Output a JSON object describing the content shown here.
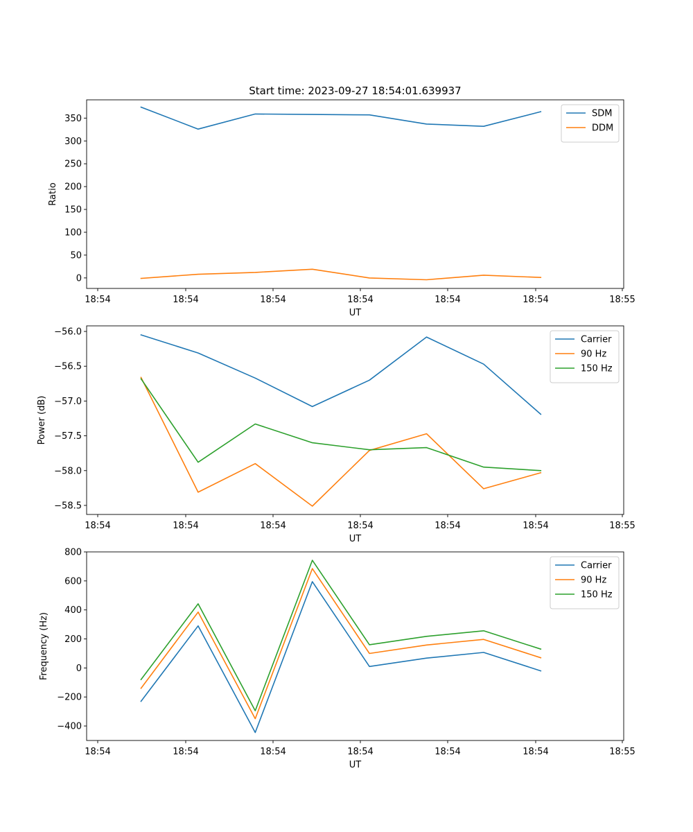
{
  "title": "Start time: 2023-09-27 18:54:01.639937",
  "chart_data": [
    {
      "type": "line",
      "xlabel": "UT",
      "ylabel": "Ratio",
      "xticks": [
        "18:54",
        "18:54",
        "18:54",
        "18:54",
        "18:54",
        "18:54",
        "18:55"
      ],
      "ylim": [
        -23,
        390
      ],
      "yticks": [
        0,
        50,
        100,
        150,
        200,
        250,
        300,
        350
      ],
      "legend": "top-right",
      "series": [
        {
          "name": "SDM",
          "color": "#1f77b4",
          "values": [
            374,
            326,
            359,
            358,
            357,
            337,
            332,
            364
          ]
        },
        {
          "name": "DDM",
          "color": "#ff7f0e",
          "values": [
            -1,
            8,
            12,
            19,
            0,
            -4,
            6,
            1
          ]
        }
      ]
    },
    {
      "type": "line",
      "xlabel": "UT",
      "ylabel": "Power (dB)",
      "xticks": [
        "18:54",
        "18:54",
        "18:54",
        "18:54",
        "18:54",
        "18:54",
        "18:55"
      ],
      "ylim": [
        -58.63,
        -55.92
      ],
      "yticks": [
        -56.0,
        -56.5,
        -57.0,
        -57.5,
        -58.0,
        -58.5
      ],
      "legend": "top-right",
      "series": [
        {
          "name": "Carrier",
          "color": "#1f77b4",
          "values": [
            -56.05,
            -56.31,
            -56.67,
            -57.08,
            -56.7,
            -56.08,
            -56.47,
            -57.19
          ]
        },
        {
          "name": "90 Hz",
          "color": "#ff7f0e",
          "values": [
            -56.66,
            -58.31,
            -57.9,
            -58.51,
            -57.71,
            -57.47,
            -58.26,
            -58.03
          ]
        },
        {
          "name": "150 Hz",
          "color": "#2ca02c",
          "values": [
            -56.68,
            -57.88,
            -57.33,
            -57.6,
            -57.7,
            -57.67,
            -57.95,
            -58.0
          ]
        }
      ]
    },
    {
      "type": "line",
      "xlabel": "UT",
      "ylabel": "Frequency (Hz)",
      "xticks": [
        "18:54",
        "18:54",
        "18:54",
        "18:54",
        "18:54",
        "18:54",
        "18:55"
      ],
      "ylim": [
        -500,
        800
      ],
      "yticks": [
        -400,
        -200,
        0,
        200,
        400,
        600,
        800
      ],
      "legend": "top-right",
      "series": [
        {
          "name": "Carrier",
          "color": "#1f77b4",
          "values": [
            -230,
            290,
            -445,
            595,
            10,
            68,
            107,
            -20
          ]
        },
        {
          "name": "90 Hz",
          "color": "#ff7f0e",
          "values": [
            -140,
            385,
            -350,
            685,
            100,
            158,
            197,
            70
          ]
        },
        {
          "name": "150 Hz",
          "color": "#2ca02c",
          "values": [
            -80,
            442,
            -295,
            742,
            160,
            218,
            256,
            130
          ]
        }
      ]
    }
  ]
}
